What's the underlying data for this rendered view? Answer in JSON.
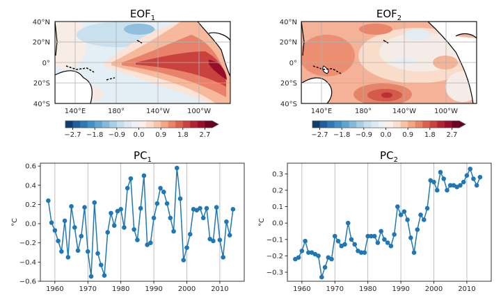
{
  "colorbar": {
    "ticks": [
      "−2.7",
      "−1.8",
      "−0.9",
      "0.0",
      "0.9",
      "1.8",
      "2.7"
    ],
    "tick_values": [
      -2.7,
      -1.8,
      -0.9,
      0.0,
      0.9,
      1.8,
      2.7
    ],
    "range": [
      -3.0,
      3.0
    ],
    "levels": 20,
    "colors": [
      "#0d3e6e",
      "#1f5f9f",
      "#2e78b7",
      "#4290c5",
      "#5fa5d0",
      "#83bada",
      "#a6cfe4",
      "#c4dfed",
      "#dce9f2",
      "#eef2f5",
      "#fbefe9",
      "#fcdccb",
      "#f9c3a7",
      "#f4a583",
      "#e98466",
      "#dc624f",
      "#c9423e",
      "#b42230",
      "#980e28",
      "#6d0320"
    ]
  },
  "maps": [
    {
      "title": "EOF",
      "subscript": "1",
      "lat_ticks": [
        "40°N",
        "20°N",
        "0°",
        "20°S",
        "40°S"
      ],
      "lon_ticks": [
        "140°E",
        "180°",
        "140°W",
        "100°W"
      ]
    },
    {
      "title": "EOF",
      "subscript": "2",
      "lat_ticks": [
        "40°N",
        "20°N",
        "0°",
        "20°S",
        "40°S"
      ],
      "lon_ticks": [
        "140°E",
        "180°",
        "140°W",
        "100°W"
      ]
    }
  ],
  "chart_data": [
    {
      "type": "line",
      "title": "PC",
      "subscript": "1",
      "xlabel": "",
      "ylabel": "°C",
      "xlim": [
        1955.6,
        2017.4
      ],
      "ylim": [
        -0.6,
        0.63
      ],
      "xticks": [
        1960,
        1970,
        1980,
        1990,
        2000,
        2010
      ],
      "yticks": [
        -0.6,
        -0.4,
        -0.2,
        0.0,
        0.2,
        0.4,
        0.6
      ],
      "ytick_labels": [
        "−0.6",
        "−0.4",
        "−0.2",
        "0.0",
        "0.2",
        "0.4",
        "0.6"
      ],
      "grid": "x",
      "color": "#1f77b4",
      "x_start": 1958,
      "values": [
        0.24,
        0.01,
        -0.07,
        -0.18,
        -0.29,
        0.03,
        -0.35,
        0.18,
        -0.04,
        -0.28,
        -0.13,
        0.17,
        -0.29,
        -0.55,
        0.22,
        -0.31,
        -0.43,
        -0.54,
        -0.09,
        0.11,
        -0.02,
        0.13,
        0.15,
        -0.04,
        0.37,
        0.47,
        -0.06,
        -0.17,
        0.16,
        0.5,
        -0.22,
        -0.2,
        0.06,
        0.21,
        0.37,
        0.33,
        0.21,
        0.06,
        -0.08,
        0.58,
        0.26,
        -0.38,
        -0.25,
        -0.11,
        0.15,
        0.14,
        0.16,
        0.06,
        0.16,
        -0.16,
        -0.18,
        0.17,
        -0.17,
        -0.35,
        0.02,
        -0.12,
        0.15
      ]
    },
    {
      "type": "line",
      "title": "PC",
      "subscript": "2",
      "xlabel": "",
      "ylabel": "°C",
      "xlim": [
        1955.6,
        2017.4
      ],
      "ylim": [
        -0.355,
        0.365
      ],
      "xticks": [
        1960,
        1970,
        1980,
        1990,
        2000,
        2010
      ],
      "yticks": [
        -0.3,
        -0.2,
        -0.1,
        0.0,
        0.1,
        0.2,
        0.3
      ],
      "ytick_labels": [
        "−0.3",
        "−0.2",
        "−0.1",
        "0.0",
        "0.1",
        "0.2",
        "0.3"
      ],
      "grid": "x",
      "color": "#1f77b4",
      "x_start": 1958,
      "values": [
        -0.22,
        -0.21,
        -0.17,
        -0.11,
        -0.18,
        -0.18,
        -0.19,
        -0.2,
        -0.33,
        -0.27,
        -0.21,
        -0.22,
        -0.08,
        -0.11,
        -0.14,
        -0.13,
        0.0,
        -0.1,
        -0.13,
        -0.17,
        -0.18,
        -0.18,
        -0.08,
        -0.08,
        -0.08,
        -0.12,
        -0.05,
        -0.1,
        -0.12,
        -0.14,
        -0.07,
        0.1,
        0.05,
        0.07,
        0.02,
        -0.09,
        -0.18,
        -0.04,
        0.05,
        0.02,
        0.09,
        0.26,
        0.25,
        0.2,
        0.31,
        0.27,
        0.2,
        0.23,
        0.23,
        0.22,
        0.23,
        0.25,
        0.29,
        0.33,
        0.27,
        0.23,
        0.28
      ]
    }
  ]
}
